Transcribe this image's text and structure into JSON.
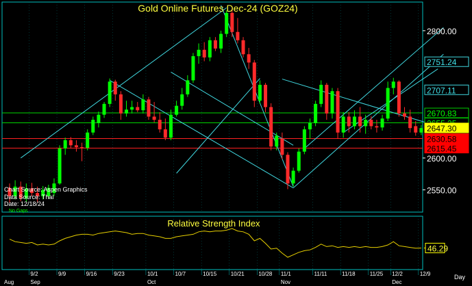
{
  "chart_data": [
    {
      "type": "candlestick",
      "title": "Gold Online Futures Dec-24 (GOZ24)",
      "ylim": [
        2515,
        2845
      ],
      "y_ticks": [
        2550,
        2600,
        2800
      ],
      "colors": {
        "up": "#00ff00",
        "down": "#ff2a2a",
        "channel": "#40d8e0",
        "background": "#000000",
        "frame": "#00c0c0"
      },
      "candles": [
        {
          "o": 2553,
          "h": 2560,
          "l": 2530,
          "c": 2540
        },
        {
          "o": 2540,
          "h": 2565,
          "l": 2535,
          "c": 2555
        },
        {
          "o": 2555,
          "h": 2563,
          "l": 2532,
          "c": 2537
        },
        {
          "o": 2537,
          "h": 2560,
          "l": 2531,
          "c": 2552
        },
        {
          "o": 2552,
          "h": 2561,
          "l": 2540,
          "c": 2545
        },
        {
          "o": 2545,
          "h": 2555,
          "l": 2530,
          "c": 2540
        },
        {
          "o": 2540,
          "h": 2556,
          "l": 2535,
          "c": 2550
        },
        {
          "o": 2540,
          "h": 2558,
          "l": 2536,
          "c": 2553
        },
        {
          "o": 2545,
          "h": 2568,
          "l": 2540,
          "c": 2560
        },
        {
          "o": 2560,
          "h": 2620,
          "l": 2558,
          "c": 2615
        },
        {
          "o": 2615,
          "h": 2632,
          "l": 2605,
          "c": 2628
        },
        {
          "o": 2628,
          "h": 2633,
          "l": 2615,
          "c": 2620
        },
        {
          "o": 2620,
          "h": 2628,
          "l": 2610,
          "c": 2617
        },
        {
          "o": 2617,
          "h": 2624,
          "l": 2595,
          "c": 2616
        },
        {
          "o": 2616,
          "h": 2645,
          "l": 2612,
          "c": 2640
        },
        {
          "o": 2640,
          "h": 2665,
          "l": 2636,
          "c": 2660
        },
        {
          "o": 2655,
          "h": 2673,
          "l": 2648,
          "c": 2668
        },
        {
          "o": 2668,
          "h": 2688,
          "l": 2663,
          "c": 2685
        },
        {
          "o": 2685,
          "h": 2725,
          "l": 2680,
          "c": 2720
        },
        {
          "o": 2720,
          "h": 2723,
          "l": 2690,
          "c": 2700
        },
        {
          "o": 2700,
          "h": 2705,
          "l": 2660,
          "c": 2670
        },
        {
          "o": 2670,
          "h": 2690,
          "l": 2665,
          "c": 2676
        },
        {
          "o": 2676,
          "h": 2690,
          "l": 2670,
          "c": 2680
        },
        {
          "o": 2680,
          "h": 2688,
          "l": 2672,
          "c": 2675
        },
        {
          "o": 2675,
          "h": 2700,
          "l": 2670,
          "c": 2692
        },
        {
          "o": 2692,
          "h": 2696,
          "l": 2660,
          "c": 2665
        },
        {
          "o": 2665,
          "h": 2688,
          "l": 2656,
          "c": 2660
        },
        {
          "o": 2660,
          "h": 2672,
          "l": 2640,
          "c": 2645
        },
        {
          "o": 2645,
          "h": 2662,
          "l": 2628,
          "c": 2632
        },
        {
          "o": 2632,
          "h": 2676,
          "l": 2628,
          "c": 2668
        },
        {
          "o": 2668,
          "h": 2690,
          "l": 2665,
          "c": 2682
        },
        {
          "o": 2682,
          "h": 2710,
          "l": 2676,
          "c": 2700
        },
        {
          "o": 2700,
          "h": 2730,
          "l": 2696,
          "c": 2722
        },
        {
          "o": 2722,
          "h": 2765,
          "l": 2718,
          "c": 2760
        },
        {
          "o": 2760,
          "h": 2780,
          "l": 2748,
          "c": 2770
        },
        {
          "o": 2770,
          "h": 2782,
          "l": 2752,
          "c": 2758
        },
        {
          "o": 2758,
          "h": 2790,
          "l": 2752,
          "c": 2785
        },
        {
          "o": 2785,
          "h": 2790,
          "l": 2768,
          "c": 2772
        },
        {
          "o": 2772,
          "h": 2800,
          "l": 2765,
          "c": 2795
        },
        {
          "o": 2795,
          "h": 2832,
          "l": 2790,
          "c": 2828
        },
        {
          "o": 2828,
          "h": 2835,
          "l": 2790,
          "c": 2798
        },
        {
          "o": 2798,
          "h": 2820,
          "l": 2780,
          "c": 2785
        },
        {
          "o": 2785,
          "h": 2790,
          "l": 2758,
          "c": 2763
        },
        {
          "o": 2763,
          "h": 2773,
          "l": 2740,
          "c": 2750
        },
        {
          "o": 2750,
          "h": 2754,
          "l": 2680,
          "c": 2690
        },
        {
          "o": 2690,
          "h": 2722,
          "l": 2685,
          "c": 2715
        },
        {
          "o": 2715,
          "h": 2718,
          "l": 2672,
          "c": 2680
        },
        {
          "o": 2680,
          "h": 2686,
          "l": 2612,
          "c": 2618
        },
        {
          "o": 2618,
          "h": 2640,
          "l": 2612,
          "c": 2635
        },
        {
          "o": 2630,
          "h": 2640,
          "l": 2598,
          "c": 2605
        },
        {
          "o": 2605,
          "h": 2609,
          "l": 2551,
          "c": 2560
        },
        {
          "o": 2560,
          "h": 2585,
          "l": 2555,
          "c": 2580
        },
        {
          "o": 2580,
          "h": 2615,
          "l": 2577,
          "c": 2610
        },
        {
          "o": 2610,
          "h": 2650,
          "l": 2606,
          "c": 2645
        },
        {
          "o": 2645,
          "h": 2662,
          "l": 2630,
          "c": 2655
        },
        {
          "o": 2655,
          "h": 2690,
          "l": 2650,
          "c": 2685
        },
        {
          "o": 2685,
          "h": 2722,
          "l": 2680,
          "c": 2715
        },
        {
          "o": 2715,
          "h": 2718,
          "l": 2660,
          "c": 2670
        },
        {
          "o": 2670,
          "h": 2710,
          "l": 2662,
          "c": 2705
        },
        {
          "o": 2705,
          "h": 2710,
          "l": 2630,
          "c": 2640
        },
        {
          "o": 2640,
          "h": 2672,
          "l": 2632,
          "c": 2665
        },
        {
          "o": 2665,
          "h": 2672,
          "l": 2640,
          "c": 2650
        },
        {
          "o": 2650,
          "h": 2675,
          "l": 2645,
          "c": 2665
        },
        {
          "o": 2665,
          "h": 2680,
          "l": 2640,
          "c": 2650
        },
        {
          "o": 2650,
          "h": 2668,
          "l": 2638,
          "c": 2660
        },
        {
          "o": 2660,
          "h": 2666,
          "l": 2645,
          "c": 2650
        },
        {
          "o": 2650,
          "h": 2660,
          "l": 2640,
          "c": 2648
        },
        {
          "o": 2648,
          "h": 2668,
          "l": 2643,
          "c": 2662
        },
        {
          "o": 2662,
          "h": 2720,
          "l": 2658,
          "c": 2710
        },
        {
          "o": 2710,
          "h": 2726,
          "l": 2700,
          "c": 2720
        },
        {
          "o": 2720,
          "h": 2722,
          "l": 2665,
          "c": 2670
        },
        {
          "o": 2670,
          "h": 2680,
          "l": 2660,
          "c": 2665
        },
        {
          "o": 2665,
          "h": 2676,
          "l": 2640,
          "c": 2647
        },
        {
          "o": 2650,
          "h": 2658,
          "l": 2635,
          "c": 2640
        },
        {
          "o": 2640,
          "h": 2652,
          "l": 2636,
          "c": 2647
        }
      ],
      "channels": [
        {
          "c1": 2,
          "p1": 2600,
          "c2": 39,
          "p2": 2836
        },
        {
          "c1": 18,
          "p1": 2722,
          "c2": 51,
          "p2": 2553
        },
        {
          "c1": 30,
          "p1": 2576,
          "c2": 45,
          "p2": 2725
        },
        {
          "c1": 38,
          "p1": 2840,
          "c2": 51,
          "p2": 2555
        },
        {
          "c1": 51,
          "p1": 2553,
          "c2": 78,
          "p2": 2763
        },
        {
          "c1": 53,
          "p1": 2615,
          "c2": 78,
          "p2": 2805
        },
        {
          "c1": 29,
          "p1": 2735,
          "c2": 51,
          "p2": 2620
        },
        {
          "c1": 49,
          "p1": 2724,
          "c2": 77,
          "p2": 2650
        },
        {
          "c1": 60,
          "p1": 2640,
          "c2": 77,
          "p2": 2740
        }
      ],
      "levels": [
        {
          "value": "2751.24",
          "y": 2751.24,
          "line": false,
          "bg": "#000000",
          "fg": "#40e0e8",
          "border": "#40d8e0"
        },
        {
          "value": "2707.11",
          "y": 2707.11,
          "line": false,
          "bg": "#000000",
          "fg": "#40e0e8",
          "border": "#40d8e0"
        },
        {
          "value": "2670.83",
          "y": 2670.83,
          "line": true,
          "lineColor": "#00d800",
          "bg": "#000000",
          "fg": "#00ff00",
          "border": "#00d000"
        },
        {
          "value": "2655.25",
          "y": 2655.25,
          "line": true,
          "lineColor": "#00d800",
          "bg": "#000000",
          "fg": "#00ff00",
          "border": "#00d000"
        },
        {
          "value": "2647.30",
          "y": 2647.3,
          "line": false,
          "bg": "#ffff00",
          "fg": "#000000",
          "border": "#ffff00"
        },
        {
          "value": "2630.58",
          "y": 2630.58,
          "line": true,
          "lineColor": "#ff2020",
          "bg": "#ff0000",
          "fg": "#000000",
          "border": "#ff0000"
        },
        {
          "value": "2615.45",
          "y": 2615.45,
          "line": true,
          "lineColor": "#ff2020",
          "bg": "#ff0000",
          "fg": "#000000",
          "border": "#ff0000"
        }
      ],
      "annotations": [
        "Chart Source: Aspen Graphics",
        "Data Source: Thal",
        "Date: 12/18/24",
        "No Gaps"
      ]
    },
    {
      "type": "line",
      "title": "Relative Strength Index",
      "last_value_label": "46.29",
      "last_value": 46.29,
      "ylim": [
        20,
        85
      ],
      "values": [
        57,
        54,
        53,
        52,
        53,
        50,
        51,
        50,
        51,
        55,
        58,
        60,
        62,
        63,
        63,
        62,
        64,
        65,
        66,
        67,
        66,
        65,
        63,
        64,
        64,
        62,
        61,
        60,
        58,
        58,
        60,
        61,
        62,
        63,
        66,
        67,
        66,
        67,
        67,
        68,
        70,
        67,
        66,
        63,
        55,
        58,
        52,
        45,
        46,
        40,
        35,
        38,
        41,
        43,
        44,
        47,
        51,
        48,
        49,
        47,
        48,
        47,
        48,
        47,
        48,
        47,
        47,
        48,
        50,
        54,
        49,
        48,
        47,
        46,
        46.29
      ]
    }
  ],
  "x_axis": {
    "week_labels": [
      {
        "label": "9/2",
        "candle": 4
      },
      {
        "label": "9/9",
        "candle": 9
      },
      {
        "label": "9/16",
        "candle": 14
      },
      {
        "label": "9/23",
        "candle": 19
      },
      {
        "label": "10/1",
        "candle": 25
      },
      {
        "label": "10/7",
        "candle": 30
      },
      {
        "label": "10/15",
        "candle": 35
      },
      {
        "label": "10/21",
        "candle": 40
      },
      {
        "label": "10/28",
        "candle": 45
      },
      {
        "label": "11/1",
        "candle": 49
      },
      {
        "label": "11/11",
        "candle": 55
      },
      {
        "label": "11/18",
        "candle": 60
      },
      {
        "label": "11/25",
        "candle": 65
      },
      {
        "label": "12/2",
        "candle": 69
      },
      {
        "label": "12/9",
        "candle": 74
      }
    ],
    "month_labels": [
      {
        "label": "Aug",
        "candle": 0
      },
      {
        "label": "Sep",
        "candle": 4
      },
      {
        "label": "Oct",
        "candle": 25
      },
      {
        "label": "Nov",
        "candle": 49
      },
      {
        "label": "Dec",
        "candle": 69
      }
    ],
    "unit_label": "Day"
  }
}
